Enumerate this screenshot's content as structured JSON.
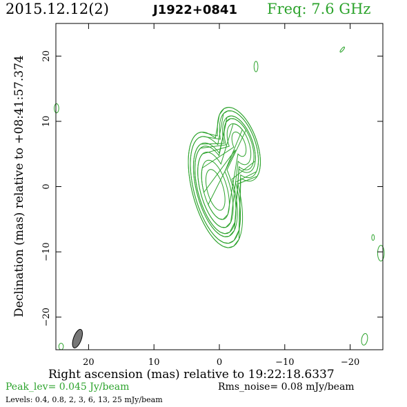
{
  "header": {
    "date": "2015.12.12(2)",
    "source": "J1922+0841",
    "freq": "Freq: 7.6 GHz"
  },
  "footer": {
    "peak": "Peak_lev=  0.045 Jy/beam",
    "rms": "Rms_noise= 0.08 mJy/beam",
    "levels": "Levels: 0.4,  0.8,    2,    3,    6,   13,   25  mJy/beam"
  },
  "colors": {
    "contour": "#2ca32c",
    "beam": "#777777",
    "axes": "#000000"
  },
  "chart_data": {
    "type": "contour",
    "xlabel": "Right ascension (mas) relative to 19:22:18.6337",
    "ylabel": "Declination (mas) relative to +08:41:57.374",
    "xlim": [
      25,
      -25
    ],
    "ylim": [
      -25,
      25
    ],
    "xticks": [
      20,
      10,
      0,
      -10,
      -20
    ],
    "xtick_labels": [
      "20",
      "10",
      "0",
      "−10",
      "−20"
    ],
    "yticks": [
      20,
      10,
      0,
      -10,
      -20
    ],
    "ytick_labels": [
      "20",
      "10",
      "0",
      "−10",
      "−20"
    ],
    "levels_mJy_per_beam": [
      0.4,
      0.8,
      2,
      3,
      6,
      13,
      25
    ],
    "beam": {
      "x": 21.7,
      "y": -23.3,
      "major": 3.0,
      "minor": 1.2,
      "pa": -20
    },
    "components": [
      {
        "x": 0.6,
        "y": -0.5,
        "peak": 0.045,
        "major": 7.0,
        "minor": 2.7,
        "pa": -15
      },
      {
        "x": -3.0,
        "y": 6.5,
        "peak": 0.02,
        "major": 5.0,
        "minor": 2.3,
        "pa": -20
      }
    ],
    "noise_islands": [
      {
        "x": -5.6,
        "y": 18.4,
        "a": 0.3,
        "b": 0.8,
        "pa": 0
      },
      {
        "x": -18.8,
        "y": 21.0,
        "a": 0.15,
        "b": 0.5,
        "pa": 40
      },
      {
        "x": 24.9,
        "y": 12.0,
        "a": 0.35,
        "b": 0.7,
        "pa": 0
      },
      {
        "x": -23.5,
        "y": -7.8,
        "a": 0.2,
        "b": 0.45,
        "pa": 0
      },
      {
        "x": -24.7,
        "y": -10.2,
        "a": 0.5,
        "b": 1.2,
        "pa": 0
      },
      {
        "x": -22.2,
        "y": -23.4,
        "a": 0.45,
        "b": 0.9,
        "pa": 10
      },
      {
        "x": 24.2,
        "y": -24.5,
        "a": 0.35,
        "b": 0.5,
        "pa": 0
      }
    ]
  }
}
